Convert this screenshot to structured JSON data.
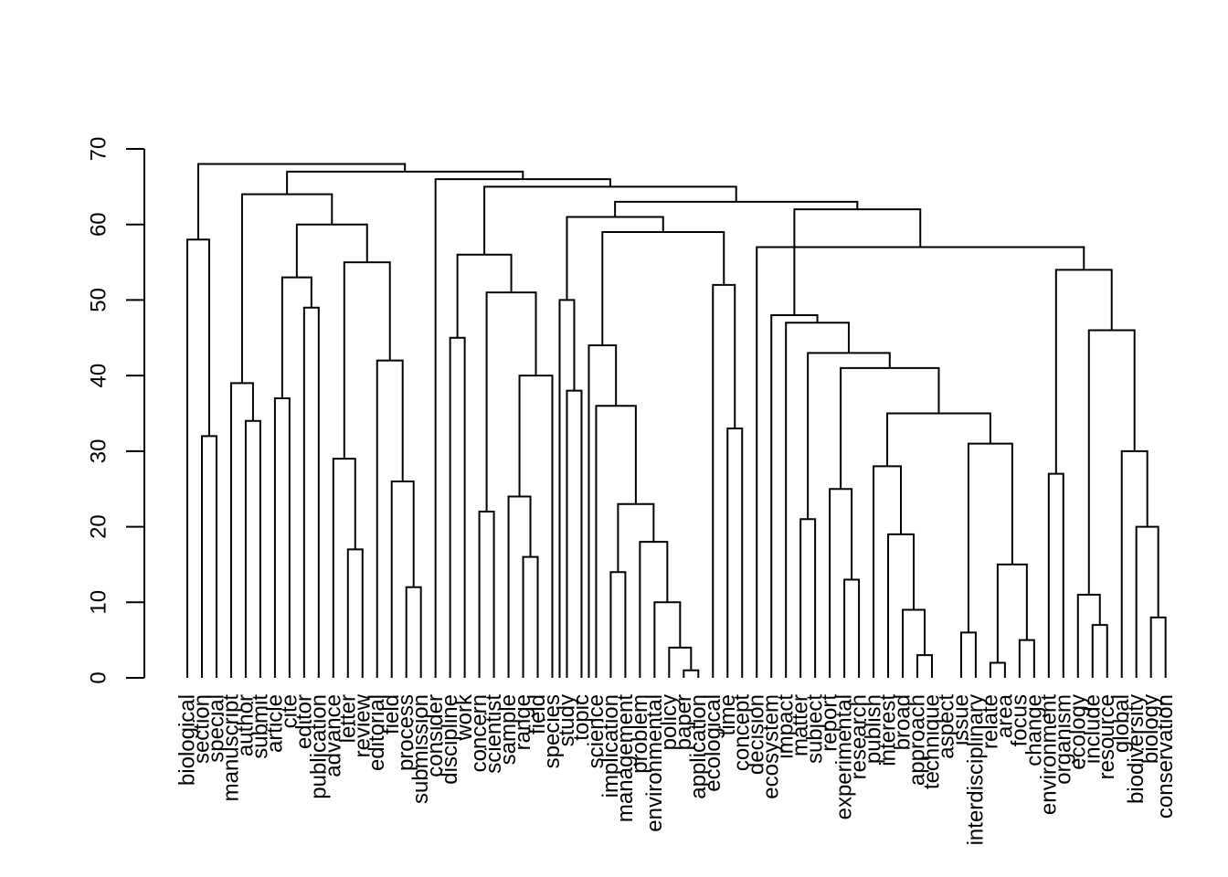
{
  "chart_data": {
    "type": "dendrogram",
    "title": "",
    "xlabel": "",
    "ylabel": "",
    "ylim": [
      0,
      70
    ],
    "yticks": [
      0,
      10,
      20,
      30,
      40,
      50,
      60,
      70
    ],
    "line_color": "#000000",
    "background": "#ffffff",
    "grid": false,
    "leaves": [
      "biological",
      "section",
      "special",
      "manuscript",
      "author",
      "submit",
      "article",
      "cite",
      "editor",
      "publication",
      "advance",
      "letter",
      "review",
      "editorial",
      "field",
      "process",
      "submission",
      "consider",
      "discipline",
      "work",
      "concern",
      "scientist",
      "sample",
      "range",
      "field",
      "species",
      "study",
      "topic",
      "science",
      "implication",
      "management",
      "problem",
      "environmental",
      "policy",
      "paper",
      "application",
      "ecological",
      "time",
      "concept",
      "decision",
      "ecosystem",
      "impact",
      "matter",
      "subject",
      "report",
      "experimental",
      "research",
      "publish",
      "interest",
      "broad",
      "approach",
      "technique",
      "aspect",
      "issue",
      "interdisciplinary",
      "relate",
      "area",
      "focus",
      "change",
      "environment",
      "organism",
      "ecology",
      "include",
      "resource",
      "global",
      "biodiversity",
      "biology",
      "conservation"
    ],
    "clusters": [
      {
        "id": "A1",
        "children": [
          1,
          2
        ],
        "height": 32
      },
      {
        "id": "A",
        "children": [
          0,
          "A1"
        ],
        "height": 58
      },
      {
        "id": "B1",
        "children": [
          4,
          5
        ],
        "height": 34
      },
      {
        "id": "B2",
        "children": [
          3,
          "B1"
        ],
        "height": 39
      },
      {
        "id": "C1",
        "children": [
          6,
          7
        ],
        "height": 37
      },
      {
        "id": "C2",
        "children": [
          8,
          9
        ],
        "height": 49
      },
      {
        "id": "C3",
        "children": [
          "C1",
          "C2"
        ],
        "height": 53
      },
      {
        "id": "D1",
        "children": [
          11,
          12
        ],
        "height": 17
      },
      {
        "id": "D2",
        "children": [
          10,
          "D1"
        ],
        "height": 29
      },
      {
        "id": "D3",
        "children": [
          15,
          16
        ],
        "height": 12
      },
      {
        "id": "D4",
        "children": [
          14,
          "D3"
        ],
        "height": 26
      },
      {
        "id": "D5",
        "children": [
          13,
          "D4"
        ],
        "height": 42
      },
      {
        "id": "D6",
        "children": [
          "D2",
          "D5"
        ],
        "height": 55
      },
      {
        "id": "C4",
        "children": [
          "C3",
          "D6"
        ],
        "height": 60
      },
      {
        "id": "B3",
        "children": [
          "B2",
          "C4"
        ],
        "height": 64
      },
      {
        "id": "E1",
        "children": [
          18,
          19
        ],
        "height": 45
      },
      {
        "id": "E2",
        "children": [
          20,
          21
        ],
        "height": 22
      },
      {
        "id": "E3",
        "children": [
          23,
          24
        ],
        "height": 16
      },
      {
        "id": "E4",
        "children": [
          22,
          "E3"
        ],
        "height": 24
      },
      {
        "id": "E5",
        "children": [
          "E4",
          25
        ],
        "height": 40
      },
      {
        "id": "E6",
        "children": [
          "E2",
          "E5"
        ],
        "height": 51
      },
      {
        "id": "E7",
        "children": [
          "E1",
          "E6"
        ],
        "height": 56
      },
      {
        "id": "F1",
        "children": [
          26,
          27
        ],
        "height": 38
      },
      {
        "id": "F2",
        "children": [
          25.5,
          "F1"
        ],
        "height": 50
      },
      {
        "id": "G1",
        "children": [
          34,
          35
        ],
        "height": 1
      },
      {
        "id": "G2",
        "children": [
          33,
          "G1"
        ],
        "height": 4
      },
      {
        "id": "G3",
        "children": [
          32,
          "G2"
        ],
        "height": 10
      },
      {
        "id": "G4",
        "children": [
          31,
          "G3"
        ],
        "height": 18
      },
      {
        "id": "G5",
        "children": [
          30,
          29
        ],
        "height": 14
      },
      {
        "id": "G6",
        "children": [
          "G5",
          "G4"
        ],
        "height": 23
      },
      {
        "id": "G7",
        "children": [
          28,
          "G6"
        ],
        "height": 36
      },
      {
        "id": "G8",
        "children": [
          27.5,
          "G7"
        ],
        "height": 44
      },
      {
        "id": "H1",
        "children": [
          37,
          38
        ],
        "height": 33
      },
      {
        "id": "H2",
        "children": [
          36,
          "H1"
        ],
        "height": 52
      },
      {
        "id": "H3",
        "children": [
          "G8",
          "H2"
        ],
        "height": 59
      },
      {
        "id": "H4",
        "children": [
          "F2",
          "H3"
        ],
        "height": 61
      },
      {
        "id": "I1",
        "children": [
          42,
          43
        ],
        "height": 21
      },
      {
        "id": "I2",
        "children": [
          45,
          46
        ],
        "height": 13
      },
      {
        "id": "I3",
        "children": [
          44,
          "I2"
        ],
        "height": 25
      },
      {
        "id": "I4",
        "children": [
          50,
          51
        ],
        "height": 3
      },
      {
        "id": "I5",
        "children": [
          49,
          "I4"
        ],
        "height": 9
      },
      {
        "id": "I6",
        "children": [
          48,
          "I5"
        ],
        "height": 19
      },
      {
        "id": "I7",
        "children": [
          47,
          "I6"
        ],
        "height": 28
      },
      {
        "id": "I8",
        "children": [
          53,
          54
        ],
        "height": 6
      },
      {
        "id": "I9",
        "children": [
          55,
          56
        ],
        "height": 2
      },
      {
        "id": "I10",
        "children": [
          57,
          58
        ],
        "height": 5
      },
      {
        "id": "I11",
        "children": [
          "I9",
          "I10"
        ],
        "height": 15
      },
      {
        "id": "I12",
        "children": [
          "I8",
          "I11"
        ],
        "height": 31
      },
      {
        "id": "I13",
        "children": [
          "I7",
          "I12"
        ],
        "height": 35
      },
      {
        "id": "I14",
        "children": [
          "I3",
          "I13"
        ],
        "height": 41
      },
      {
        "id": "I15",
        "children": [
          "I1",
          "I14"
        ],
        "height": 43
      },
      {
        "id": "I16",
        "children": [
          41,
          "I15"
        ],
        "height": 47
      },
      {
        "id": "I17",
        "children": [
          40,
          "I16"
        ],
        "height": 48
      },
      {
        "id": "J1",
        "children": [
          59,
          60
        ],
        "height": 27
      },
      {
        "id": "J2",
        "children": [
          62,
          63
        ],
        "height": 7
      },
      {
        "id": "J3",
        "children": [
          61,
          "J2"
        ],
        "height": 11
      },
      {
        "id": "J4",
        "children": [
          66,
          67
        ],
        "height": 8
      },
      {
        "id": "J5",
        "children": [
          65,
          "J4"
        ],
        "height": 20
      },
      {
        "id": "J6",
        "children": [
          64,
          "J5"
        ],
        "height": 30
      },
      {
        "id": "J7",
        "children": [
          "J3",
          "J6"
        ],
        "height": 46
      },
      {
        "id": "J8",
        "children": [
          "J1",
          "J7"
        ],
        "height": 54
      },
      {
        "id": "J9",
        "children": [
          39,
          "J8"
        ],
        "height": 57
      },
      {
        "id": "J10",
        "children": [
          "I17",
          "J9"
        ],
        "height": 62
      },
      {
        "id": "K1",
        "children": [
          "H4",
          "J10"
        ],
        "height": 63
      },
      {
        "id": "K2",
        "children": [
          "E7",
          "K1"
        ],
        "height": 65
      },
      {
        "id": "K3",
        "children": [
          17,
          "K2"
        ],
        "height": 66
      },
      {
        "id": "K4",
        "children": [
          "B3",
          "K3"
        ],
        "height": 67
      },
      {
        "id": "ROOT",
        "children": [
          "A",
          "K4"
        ],
        "height": 68
      }
    ]
  }
}
